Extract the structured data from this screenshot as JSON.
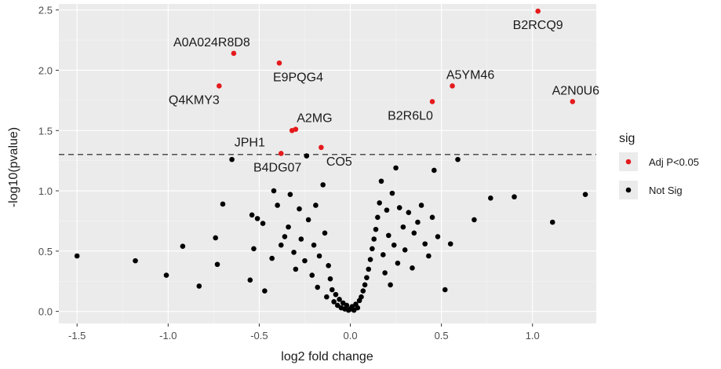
{
  "chart_data": {
    "type": "scatter",
    "xlabel": "log2 fold change",
    "ylabel": "-log10(pvalue)",
    "xlim": [
      -1.6,
      1.35
    ],
    "ylim": [
      -0.1,
      2.55
    ],
    "x_ticks": [
      -1.5,
      -1.0,
      -0.5,
      0.0,
      0.5,
      1.0
    ],
    "x_tick_labels": [
      "-1.5",
      "-1.0",
      "-0.5",
      "0.0",
      "0.5",
      "1.0"
    ],
    "y_ticks": [
      0.0,
      0.5,
      1.0,
      1.5,
      2.0,
      2.5
    ],
    "y_tick_labels": [
      "0.0",
      "0.5",
      "1.0",
      "1.5",
      "2.0",
      "2.5"
    ],
    "threshold_line": {
      "y": 1.301,
      "style": "dashed"
    },
    "grid": true,
    "legend": {
      "title": "sig",
      "placement": "right",
      "entries": [
        {
          "label": "Adj P<0.05",
          "color": "#e41a1c"
        },
        {
          "label": "Not Sig",
          "color": "#000000"
        }
      ]
    },
    "colors": {
      "panel": "#ebebeb",
      "grid_major": "#ffffff",
      "grid_minor": "#f5f5f5",
      "sig": "#e41a1c",
      "notsig": "#000000"
    },
    "series": [
      {
        "name": "Adj P<0.05",
        "points": [
          {
            "x": 1.03,
            "y": 2.49,
            "label": "B2RCQ9"
          },
          {
            "x": -0.64,
            "y": 2.14,
            "label": "A0A024R8D8"
          },
          {
            "x": -0.39,
            "y": 2.06,
            "label": "E9PQG4"
          },
          {
            "x": -0.72,
            "y": 1.87,
            "label": "Q4KMY3"
          },
          {
            "x": 0.56,
            "y": 1.87,
            "label": "A5YM46"
          },
          {
            "x": 0.45,
            "y": 1.74,
            "label": "B2R6L0"
          },
          {
            "x": 1.22,
            "y": 1.74,
            "label": "A2N0U6"
          },
          {
            "x": -0.3,
            "y": 1.51,
            "label": "A2MG"
          },
          {
            "x": -0.32,
            "y": 1.5,
            "label": ""
          },
          {
            "x": -0.16,
            "y": 1.36,
            "label": "CO5"
          },
          {
            "x": -0.38,
            "y": 1.31,
            "label": "JPH1"
          }
        ]
      },
      {
        "name": "Not Sig",
        "points": [
          {
            "x": -1.5,
            "y": 0.46
          },
          {
            "x": -1.18,
            "y": 0.42
          },
          {
            "x": -1.01,
            "y": 0.3
          },
          {
            "x": -0.92,
            "y": 0.54
          },
          {
            "x": -0.83,
            "y": 0.21
          },
          {
            "x": -0.74,
            "y": 0.61
          },
          {
            "x": -0.73,
            "y": 0.39
          },
          {
            "x": -0.7,
            "y": 0.89
          },
          {
            "x": -0.65,
            "y": 1.26
          },
          {
            "x": -0.54,
            "y": 0.8
          },
          {
            "x": -0.55,
            "y": 0.26
          },
          {
            "x": -0.53,
            "y": 0.52
          },
          {
            "x": -0.51,
            "y": 0.77
          },
          {
            "x": -0.48,
            "y": 0.73
          },
          {
            "x": -0.47,
            "y": 0.17
          },
          {
            "x": -0.43,
            "y": 0.44
          },
          {
            "x": -0.42,
            "y": 1.0
          },
          {
            "x": -0.4,
            "y": 0.88
          },
          {
            "x": -0.38,
            "y": 0.55
          },
          {
            "x": -0.36,
            "y": 0.62
          },
          {
            "x": -0.34,
            "y": 0.7
          },
          {
            "x": -0.33,
            "y": 0.97
          },
          {
            "x": -0.31,
            "y": 0.49
          },
          {
            "x": -0.3,
            "y": 0.35
          },
          {
            "x": -0.28,
            "y": 0.85
          },
          {
            "x": -0.27,
            "y": 0.6
          },
          {
            "x": -0.25,
            "y": 0.42
          },
          {
            "x": -0.24,
            "y": 1.29
          },
          {
            "x": -0.23,
            "y": 0.76
          },
          {
            "x": -0.21,
            "y": 0.3
          },
          {
            "x": -0.2,
            "y": 0.55
          },
          {
            "x": -0.19,
            "y": 0.88
          },
          {
            "x": -0.18,
            "y": 0.2
          },
          {
            "x": -0.17,
            "y": 0.46
          },
          {
            "x": -0.15,
            "y": 1.05
          },
          {
            "x": -0.14,
            "y": 0.65
          },
          {
            "x": -0.13,
            "y": 0.12
          },
          {
            "x": -0.12,
            "y": 0.38
          },
          {
            "x": -0.11,
            "y": 0.27
          },
          {
            "x": -0.1,
            "y": 0.18
          },
          {
            "x": -0.09,
            "y": 0.08
          },
          {
            "x": -0.08,
            "y": 0.14
          },
          {
            "x": -0.07,
            "y": 0.05
          },
          {
            "x": -0.06,
            "y": 0.1
          },
          {
            "x": -0.05,
            "y": 0.03
          },
          {
            "x": -0.04,
            "y": 0.07
          },
          {
            "x": -0.03,
            "y": 0.02
          },
          {
            "x": -0.02,
            "y": 0.05
          },
          {
            "x": -0.01,
            "y": 0.01
          },
          {
            "x": 0.0,
            "y": 0.02
          },
          {
            "x": 0.01,
            "y": 0.04
          },
          {
            "x": 0.02,
            "y": 0.01
          },
          {
            "x": 0.03,
            "y": 0.06
          },
          {
            "x": 0.04,
            "y": 0.03
          },
          {
            "x": 0.05,
            "y": 0.09
          },
          {
            "x": 0.06,
            "y": 0.12
          },
          {
            "x": 0.07,
            "y": 0.17
          },
          {
            "x": 0.08,
            "y": 0.22
          },
          {
            "x": 0.09,
            "y": 0.28
          },
          {
            "x": 0.1,
            "y": 0.35
          },
          {
            "x": 0.11,
            "y": 0.43
          },
          {
            "x": 0.12,
            "y": 0.52
          },
          {
            "x": 0.13,
            "y": 0.6
          },
          {
            "x": 0.14,
            "y": 0.68
          },
          {
            "x": 0.15,
            "y": 0.78
          },
          {
            "x": 0.16,
            "y": 0.9
          },
          {
            "x": 0.17,
            "y": 1.08
          },
          {
            "x": 0.18,
            "y": 0.47
          },
          {
            "x": 0.19,
            "y": 0.32
          },
          {
            "x": 0.2,
            "y": 0.84
          },
          {
            "x": 0.21,
            "y": 0.63
          },
          {
            "x": 0.22,
            "y": 0.22
          },
          {
            "x": 0.23,
            "y": 0.98
          },
          {
            "x": 0.24,
            "y": 0.55
          },
          {
            "x": 0.25,
            "y": 1.19
          },
          {
            "x": 0.26,
            "y": 0.4
          },
          {
            "x": 0.27,
            "y": 0.86
          },
          {
            "x": 0.29,
            "y": 0.7
          },
          {
            "x": 0.3,
            "y": 0.51
          },
          {
            "x": 0.32,
            "y": 0.82
          },
          {
            "x": 0.34,
            "y": 0.36
          },
          {
            "x": 0.35,
            "y": 0.65
          },
          {
            "x": 0.37,
            "y": 0.74
          },
          {
            "x": 0.39,
            "y": 0.88
          },
          {
            "x": 0.41,
            "y": 0.56
          },
          {
            "x": 0.43,
            "y": 0.46
          },
          {
            "x": 0.45,
            "y": 0.78
          },
          {
            "x": 0.46,
            "y": 1.17
          },
          {
            "x": 0.48,
            "y": 0.62
          },
          {
            "x": 0.52,
            "y": 0.18
          },
          {
            "x": 0.55,
            "y": 0.56
          },
          {
            "x": 0.59,
            "y": 1.26
          },
          {
            "x": 0.68,
            "y": 0.76
          },
          {
            "x": 0.77,
            "y": 0.94
          },
          {
            "x": 0.9,
            "y": 0.95
          },
          {
            "x": 1.11,
            "y": 0.74
          },
          {
            "x": 1.29,
            "y": 0.97
          }
        ]
      }
    ]
  }
}
